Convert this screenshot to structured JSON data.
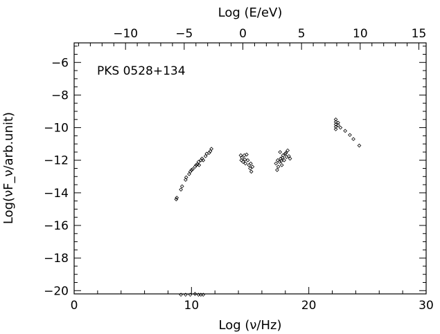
{
  "chart_data": {
    "type": "scatter",
    "title": "",
    "annotation": "PKS 0528+134",
    "xlabel": "Log (ν/Hz)",
    "ylabel": "Log(νF_ν/arb.unit)",
    "top_xlabel": "Log (E/eV)",
    "xlim": [
      0,
      30
    ],
    "ylim": [
      -20.2,
      -4.8
    ],
    "top_xlim": [
      -14.38,
      15.62
    ],
    "xticks": [
      0,
      10,
      20,
      30
    ],
    "yticks": [
      -20,
      -18,
      -16,
      -14,
      -12,
      -10,
      -8,
      -6
    ],
    "top_xticks": [
      -10,
      -5,
      0,
      5,
      10,
      15
    ],
    "grid": false,
    "legend": "none",
    "series": [
      {
        "marker": "diamond",
        "points": [
          [
            8.7,
            -14.4
          ],
          [
            8.75,
            -14.3
          ],
          [
            9.1,
            -13.8
          ],
          [
            9.2,
            -13.6
          ],
          [
            9.5,
            -13.2
          ],
          [
            9.55,
            -13.05
          ],
          [
            9.8,
            -12.85
          ],
          [
            9.9,
            -12.7
          ],
          [
            10.0,
            -12.6
          ],
          [
            10.1,
            -12.55
          ],
          [
            10.3,
            -12.4
          ],
          [
            10.4,
            -12.3
          ],
          [
            10.5,
            -12.25
          ],
          [
            10.6,
            -12.1
          ],
          [
            10.65,
            -12.3
          ],
          [
            10.8,
            -12.0
          ],
          [
            10.9,
            -11.9
          ],
          [
            11.0,
            -12.0
          ],
          [
            11.2,
            -11.75
          ],
          [
            11.3,
            -11.6
          ],
          [
            11.5,
            -11.55
          ],
          [
            11.6,
            -11.45
          ],
          [
            11.7,
            -11.3
          ],
          [
            14.2,
            -11.7
          ],
          [
            14.25,
            -12.0
          ],
          [
            14.3,
            -11.85
          ],
          [
            14.4,
            -12.1
          ],
          [
            14.5,
            -11.7
          ],
          [
            14.55,
            -11.95
          ],
          [
            14.6,
            -12.2
          ],
          [
            14.7,
            -11.65
          ],
          [
            14.8,
            -12.0
          ],
          [
            14.9,
            -12.3
          ],
          [
            15.0,
            -12.5
          ],
          [
            15.05,
            -12.2
          ],
          [
            15.1,
            -12.7
          ],
          [
            15.2,
            -12.4
          ],
          [
            17.2,
            -12.2
          ],
          [
            17.3,
            -12.6
          ],
          [
            17.35,
            -12.0
          ],
          [
            17.4,
            -12.4
          ],
          [
            17.5,
            -12.1
          ],
          [
            17.6,
            -11.9
          ],
          [
            17.7,
            -12.3
          ],
          [
            17.8,
            -11.7
          ],
          [
            17.9,
            -12.0
          ],
          [
            18.0,
            -11.6
          ],
          [
            18.1,
            -11.8
          ],
          [
            18.2,
            -11.4
          ],
          [
            18.3,
            -11.75
          ],
          [
            18.4,
            -11.9
          ],
          [
            17.55,
            -11.5
          ],
          [
            17.65,
            -12.05
          ],
          [
            17.75,
            -11.85
          ],
          [
            18.05,
            -11.55
          ],
          [
            22.3,
            -9.5
          ],
          [
            22.3,
            -9.65
          ],
          [
            22.3,
            -9.8
          ],
          [
            22.3,
            -9.95
          ],
          [
            22.3,
            -10.1
          ],
          [
            22.5,
            -9.7
          ],
          [
            22.5,
            -9.85
          ],
          [
            22.7,
            -10.0
          ],
          [
            23.1,
            -10.2
          ],
          [
            23.5,
            -10.45
          ],
          [
            23.8,
            -10.7
          ],
          [
            24.3,
            -11.1
          ],
          [
            9.1,
            -20.25
          ],
          [
            9.5,
            -20.25
          ],
          [
            9.9,
            -20.25
          ],
          [
            10.3,
            -20.2
          ],
          [
            10.6,
            -20.25
          ],
          [
            10.8,
            -20.25
          ],
          [
            11.0,
            -20.25
          ]
        ]
      }
    ]
  }
}
